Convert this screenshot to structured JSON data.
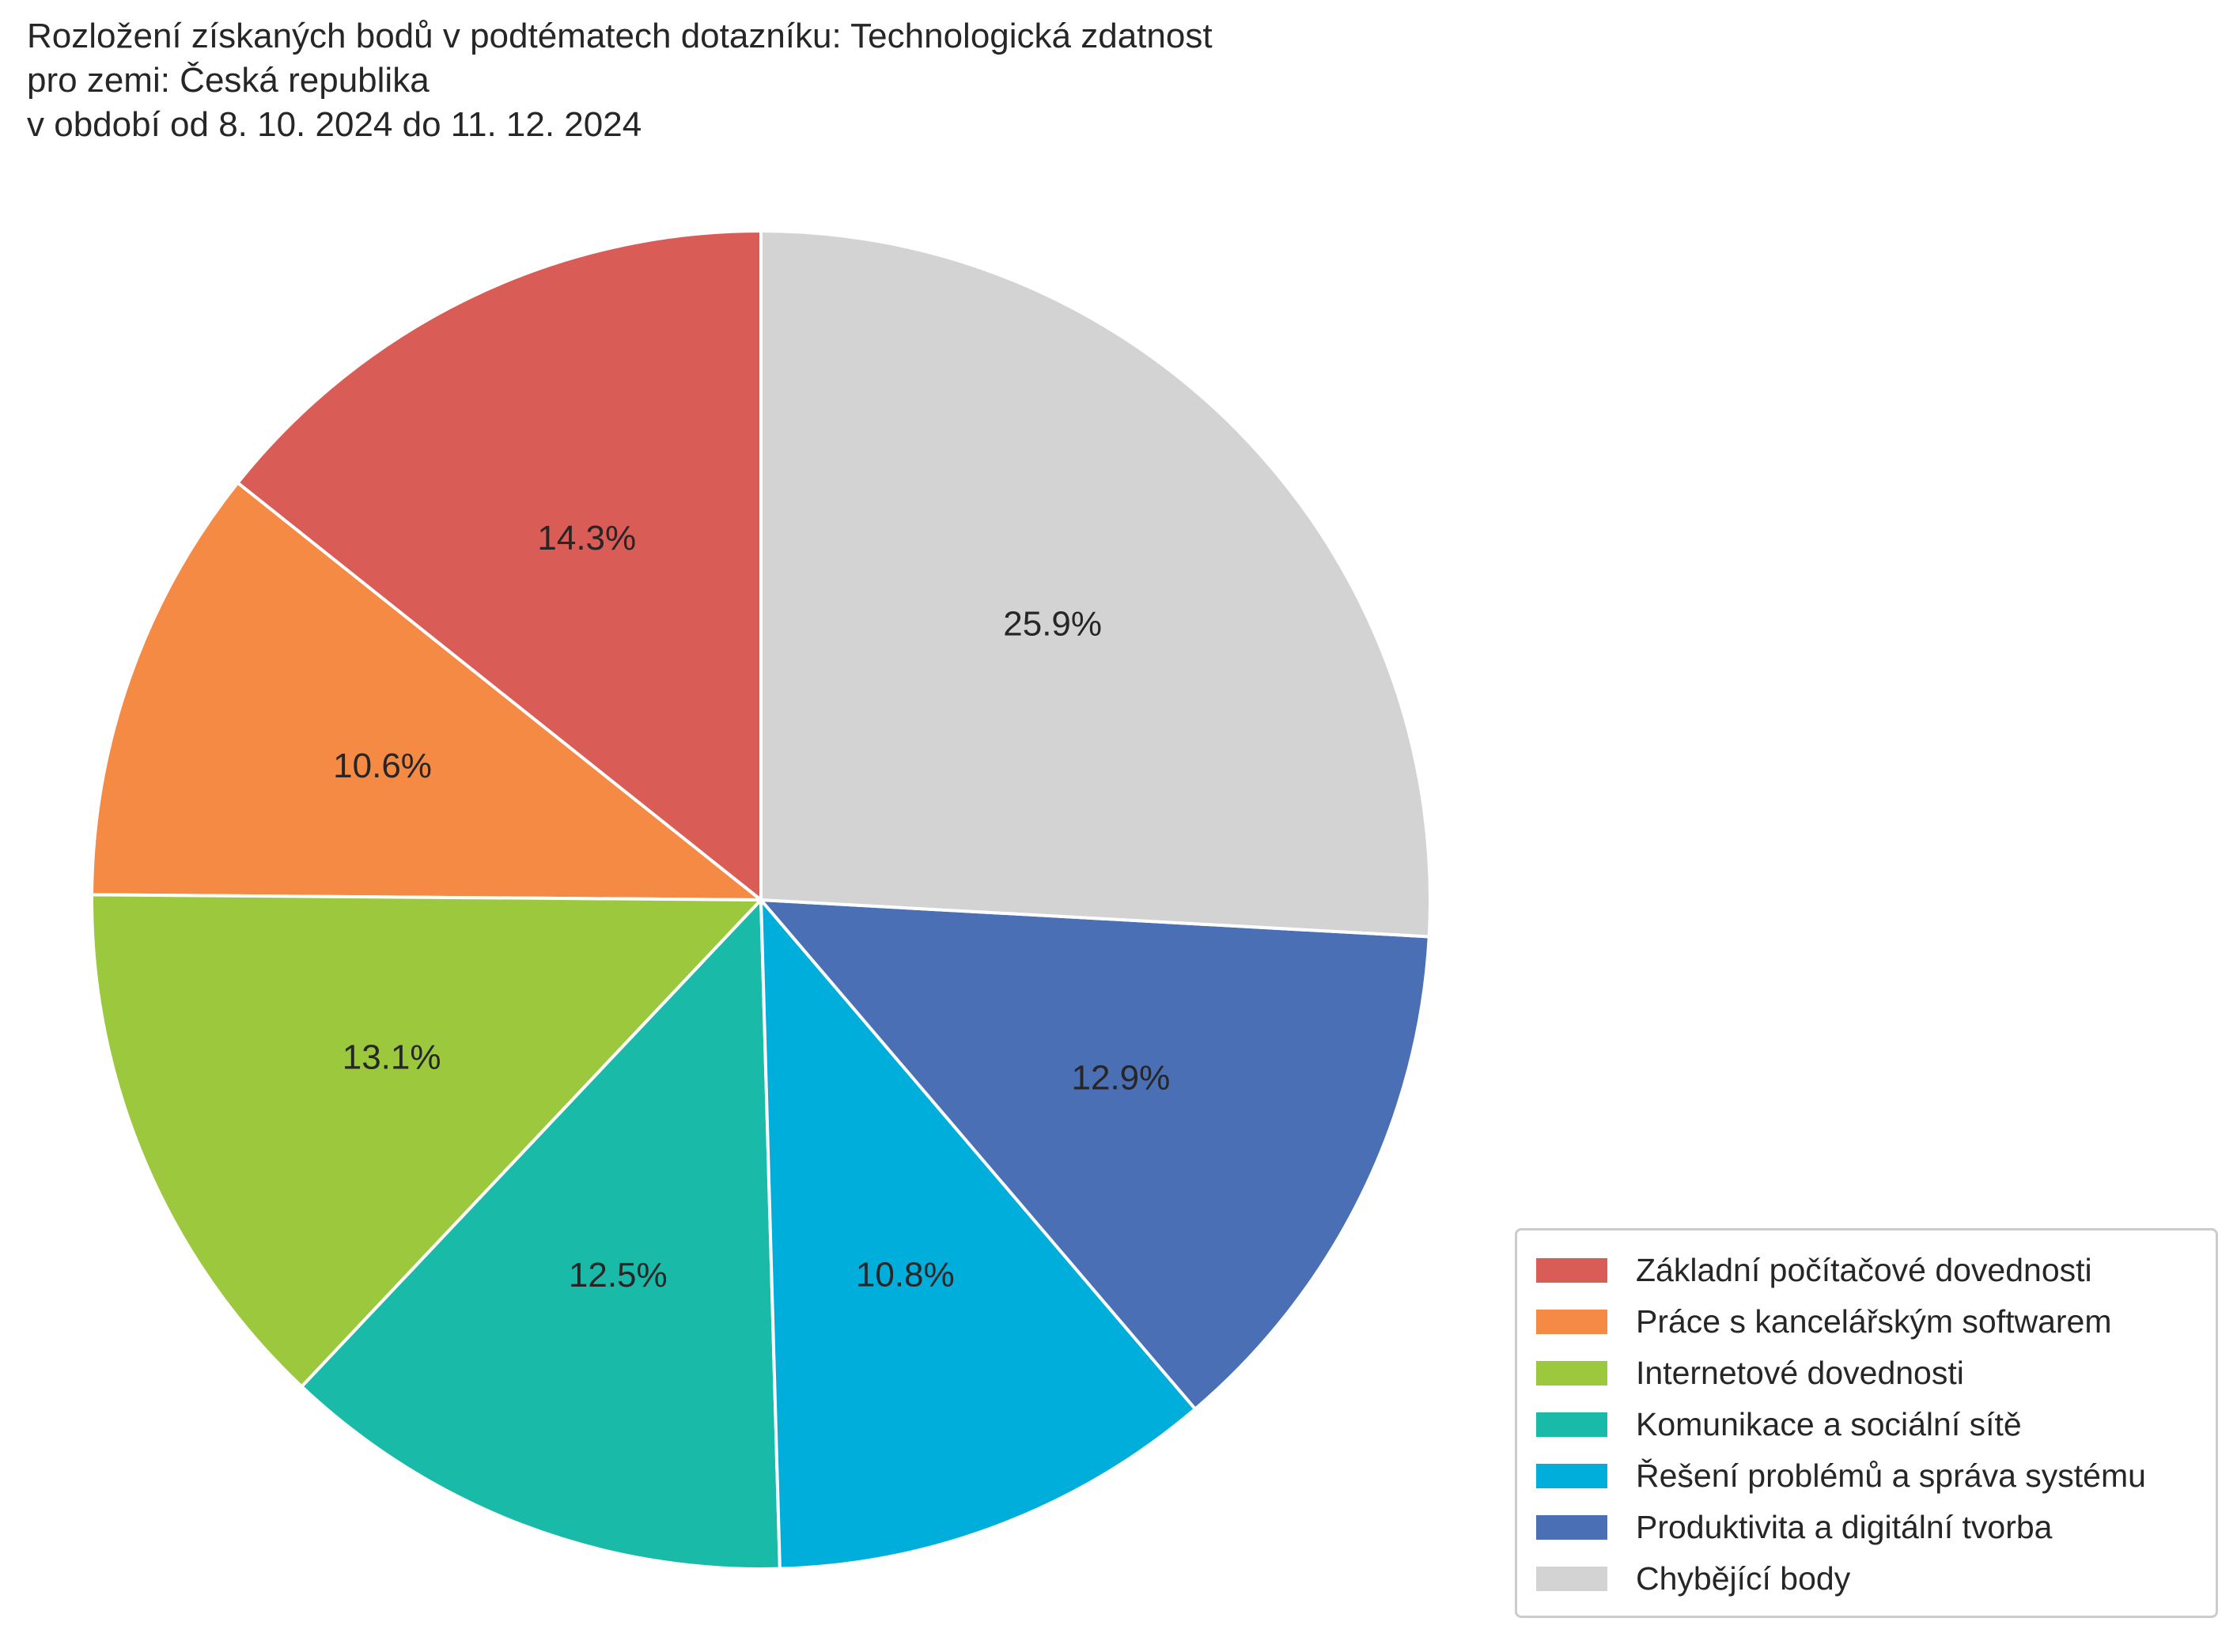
{
  "title_lines": [
    "Rozložení získaných bodů v podtématech dotazníku: Technologická zdatnost",
    "pro zemi: Česká republika",
    "v období od 8. 10. 2024 do 11. 12. 2024"
  ],
  "chart_data": {
    "type": "pie",
    "title": "Rozložení získaných bodů v podtématech dotazníku: Technologická zdatnost\npro zemi: Česká republika\nv období od 8. 10. 2024 do 11. 12. 2024",
    "start_angle_deg": 90,
    "direction": "counterclockwise",
    "legend_position": "bottom-right",
    "slices": [
      {
        "label": "Základní počítačové dovednosti",
        "value": 14.3,
        "display": "14.3%",
        "color": "#d95c57"
      },
      {
        "label": "Práce s kancelářským softwarem",
        "value": 10.6,
        "display": "10.6%",
        "color": "#f58a44"
      },
      {
        "label": "Internetové dovednosti",
        "value": 13.1,
        "display": "13.1%",
        "color": "#9bc83c"
      },
      {
        "label": "Komunikace a sociální sítě",
        "value": 12.5,
        "display": "12.5%",
        "color": "#19bba8"
      },
      {
        "label": "Řešení problémů a správa systému",
        "value": 10.8,
        "display": "10.8%",
        "color": "#00aedc"
      },
      {
        "label": "Produktivita a digitální tvorba",
        "value": 12.9,
        "display": "12.9%",
        "color": "#4a6fb5"
      },
      {
        "label": "Chybějící body",
        "value": 25.9,
        "display": "25.9%",
        "color": "#d3d3d3"
      }
    ]
  }
}
